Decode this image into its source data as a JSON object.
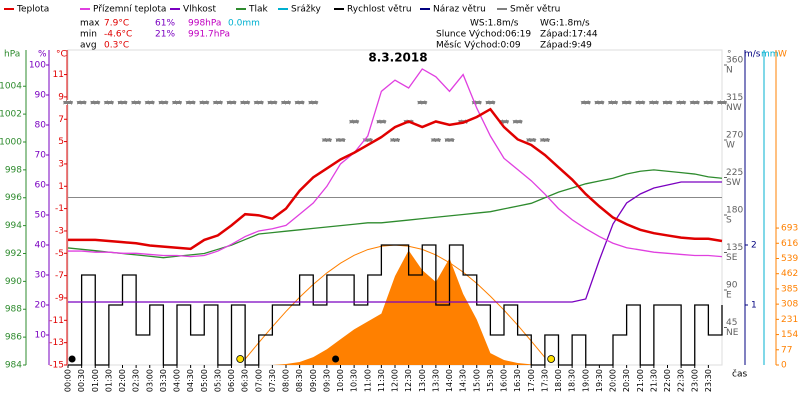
{
  "chart_data": {
    "type": "line",
    "title": "8.3.2018",
    "x_label": "čas",
    "xlim": [
      0,
      24
    ],
    "xticks": [
      {
        "value": 0,
        "label": "00:00"
      },
      {
        "value": 0.5,
        "label": "00:30"
      },
      {
        "value": 1,
        "label": "01:00"
      },
      {
        "value": 1.5,
        "label": "01:30"
      },
      {
        "value": 2,
        "label": "02:00"
      },
      {
        "value": 2.5,
        "label": "02:30"
      },
      {
        "value": 3,
        "label": "03:00"
      },
      {
        "value": 3.5,
        "label": "03:30"
      },
      {
        "value": 4,
        "label": "04:00"
      },
      {
        "value": 4.5,
        "label": "04:30"
      },
      {
        "value": 5,
        "label": "05:00"
      },
      {
        "value": 5.5,
        "label": "05:30"
      },
      {
        "value": 6,
        "label": "06:00"
      },
      {
        "value": 6.5,
        "label": "06:30"
      },
      {
        "value": 7,
        "label": "07:00"
      },
      {
        "value": 7.5,
        "label": "07:30"
      },
      {
        "value": 8,
        "label": "08:00"
      },
      {
        "value": 8.5,
        "label": "08:30"
      },
      {
        "value": 9,
        "label": "09:00"
      },
      {
        "value": 9.5,
        "label": "09:30"
      },
      {
        "value": 10,
        "label": "10:00"
      },
      {
        "value": 10.5,
        "label": "10:30"
      },
      {
        "value": 11,
        "label": "11:00"
      },
      {
        "value": 11.5,
        "label": "11:30"
      },
      {
        "value": 12,
        "label": "12:00"
      },
      {
        "value": 12.5,
        "label": "12:30"
      },
      {
        "value": 13,
        "label": "13:00"
      },
      {
        "value": 13.5,
        "label": "13:30"
      },
      {
        "value": 14,
        "label": "14:00"
      },
      {
        "value": 14.5,
        "label": "14:30"
      },
      {
        "value": 15,
        "label": "15:00"
      },
      {
        "value": 15.5,
        "label": "15:30"
      },
      {
        "value": 16,
        "label": "16:00"
      },
      {
        "value": 16.5,
        "label": "16:30"
      },
      {
        "value": 17,
        "label": "17:00"
      },
      {
        "value": 17.5,
        "label": "17:30"
      },
      {
        "value": 18,
        "label": "18:00"
      },
      {
        "value": 18.5,
        "label": "18:30"
      },
      {
        "value": 19,
        "label": "19:00"
      },
      {
        "value": 19.5,
        "label": "19:30"
      },
      {
        "value": 20,
        "label": "20:00"
      },
      {
        "value": 20.5,
        "label": "20:30"
      },
      {
        "value": 21,
        "label": "21:00"
      },
      {
        "value": 21.5,
        "label": "21:30"
      },
      {
        "value": 22,
        "label": "22:00"
      },
      {
        "value": 22.5,
        "label": "22:30"
      },
      {
        "value": 23,
        "label": "23:00"
      },
      {
        "value": 23.5,
        "label": "23:30"
      }
    ],
    "legend": [
      {
        "name": "Teplota",
        "color": "#e00000"
      },
      {
        "name": "Přízemní teplota",
        "color": "#e040e0"
      },
      {
        "name": "Vlhkost",
        "color": "#7a00c0"
      },
      {
        "name": "Tlak",
        "color": "#2e8b2e"
      },
      {
        "name": "Srážky",
        "color": "#00b0d0"
      },
      {
        "name": "Rychlost větru",
        "color": "#000000"
      },
      {
        "name": "Náraz větru",
        "color": "#000080"
      },
      {
        "name": "Směr větru",
        "color": "#808080"
      }
    ],
    "stats": [
      [
        "max",
        "7.9°C",
        "61%",
        "998hPa",
        "0.0mm"
      ],
      [
        "min",
        "-4.6°C",
        "21%",
        "991.7hPa"
      ],
      [
        "avg",
        "0.3°C"
      ]
    ],
    "info": [
      [
        "WS:1.8m/s",
        "WG:1.8m/s"
      ],
      [
        "Slunce Východ:06:19",
        "Západ:17:44"
      ],
      [
        "Měsíc Východ:0:09",
        "Západ:9:49"
      ]
    ],
    "axes": {
      "hpa": {
        "unit": "hPa",
        "color": "#2e8b2e",
        "lim": [
          984,
          1006.6
        ],
        "ticks": [
          1004,
          1002,
          1000,
          998,
          996,
          994,
          992,
          990,
          988,
          986,
          984
        ]
      },
      "pct": {
        "unit": "%",
        "color": "#7a00c0",
        "lim": [
          0,
          105
        ],
        "ticks": [
          100,
          90,
          80,
          70,
          60,
          50,
          40,
          30,
          20,
          10
        ]
      },
      "temp": {
        "unit": "°C",
        "color": "#e00000",
        "lim": [
          -15,
          13.2
        ],
        "ticks": [
          11,
          9,
          7,
          5,
          3,
          1,
          -1,
          -3,
          -5,
          -7,
          -9,
          -11,
          -13,
          -15
        ],
        "reference": 0
      },
      "dir": {
        "unit": "°",
        "color": "#606060",
        "lim": [
          0,
          378
        ],
        "ticks": [
          45,
          90,
          135,
          180,
          225,
          270,
          315,
          360
        ],
        "tick_names": [
          "NE",
          "E",
          "SE",
          "S",
          "SW",
          "W",
          "NW",
          "N"
        ]
      },
      "ms": {
        "unit": "m/s",
        "color": "#000080",
        "lim": [
          0,
          5.25
        ],
        "ticks": [
          1,
          2
        ]
      },
      "mm": {
        "unit": "mm",
        "color": "#00b0d0",
        "lim": [
          0,
          1
        ],
        "ticks": []
      },
      "w": {
        "unit": "W",
        "color": "#ff8000",
        "lim": [
          0,
          1594
        ],
        "ticks": [
          0,
          77,
          154,
          231,
          308,
          385,
          462,
          539,
          616,
          693
        ]
      }
    },
    "x": [
      0,
      0.5,
      1,
      1.5,
      2,
      2.5,
      3,
      3.5,
      4,
      4.5,
      5,
      5.5,
      6,
      6.5,
      7,
      7.5,
      8,
      8.5,
      9,
      9.5,
      10,
      10.5,
      11,
      11.5,
      12,
      12.5,
      13,
      13.5,
      14,
      14.5,
      15,
      15.5,
      16,
      16.5,
      17,
      17.5,
      18,
      18.5,
      19,
      19.5,
      20,
      20.5,
      21,
      21.5,
      22,
      22.5,
      23,
      23.5,
      24
    ],
    "series": [
      {
        "style": "area",
        "axis": "w",
        "color": "#ff8000",
        "values": [
          0,
          0,
          0,
          0,
          0,
          0,
          0,
          0,
          0,
          0,
          0,
          0,
          0,
          0,
          0,
          0,
          5,
          15,
          40,
          80,
          130,
          180,
          220,
          260,
          450,
          580,
          480,
          420,
          540,
          360,
          230,
          60,
          25,
          10,
          3,
          0,
          0,
          0,
          0,
          0,
          0,
          0,
          0,
          0,
          0,
          0,
          0,
          0,
          0
        ]
      },
      {
        "style": "thin",
        "axis": "w",
        "color": "#ff8000",
        "values": [
          null,
          null,
          null,
          null,
          null,
          null,
          null,
          null,
          null,
          null,
          null,
          null,
          null,
          30,
          113,
          194,
          271,
          343,
          408,
          466,
          515,
          555,
          584,
          601,
          607,
          601,
          585,
          557,
          518,
          470,
          413,
          348,
          278,
          202,
          121,
          38,
          null,
          null,
          null,
          null,
          null,
          null,
          null,
          null,
          null,
          null,
          null,
          null,
          null
        ]
      },
      {
        "style": "dots",
        "axis": "dir",
        "color": "#808080",
        "values": [
          315,
          315,
          315,
          315,
          315,
          315,
          315,
          315,
          315,
          315,
          315,
          315,
          315,
          315,
          315,
          315,
          315,
          315,
          315,
          270,
          270,
          292,
          270,
          292,
          270,
          292,
          315,
          270,
          270,
          292,
          315,
          315,
          292,
          292,
          270,
          270,
          null,
          null,
          315,
          315,
          315,
          315,
          315,
          315,
          315,
          315,
          315,
          315,
          315
        ]
      },
      {
        "style": "step",
        "axis": "ms",
        "color": "#000000",
        "values": [
          0,
          1.5,
          0,
          1,
          1.5,
          0.5,
          1,
          0,
          1,
          0.5,
          1,
          0,
          1,
          0,
          0.5,
          1,
          1,
          1.5,
          1,
          1.5,
          1.5,
          1,
          1.5,
          2,
          2,
          1.5,
          2,
          1,
          2,
          1.5,
          1,
          0.5,
          1,
          0.5,
          0,
          0.5,
          0,
          0.5,
          0,
          0,
          0.5,
          1,
          0,
          1,
          1,
          0,
          1,
          0.5,
          1
        ]
      },
      {
        "style": "line",
        "axis": "pct",
        "color": "#7a00c0",
        "values": [
          21,
          21,
          21,
          21,
          21,
          21,
          21,
          21,
          21,
          21,
          21,
          21,
          21,
          21,
          21,
          21,
          21,
          21,
          21,
          21,
          21,
          21,
          21,
          21,
          21,
          21,
          21,
          21,
          21,
          21,
          21,
          21,
          21,
          21,
          21,
          21,
          21,
          21,
          22,
          35,
          47,
          54,
          57,
          59,
          60,
          61,
          61,
          61,
          61
        ]
      },
      {
        "style": "line",
        "axis": "hpa",
        "color": "#2e8b2e",
        "values": [
          992.4,
          992.3,
          992.2,
          992.1,
          992.0,
          991.9,
          991.8,
          991.7,
          991.8,
          991.9,
          992.0,
          992.3,
          992.6,
          993.0,
          993.4,
          993.5,
          993.6,
          993.7,
          993.8,
          993.9,
          994.0,
          994.1,
          994.2,
          994.2,
          994.3,
          994.4,
          994.5,
          994.6,
          994.7,
          994.8,
          994.9,
          995.0,
          995.2,
          995.4,
          995.6,
          996.0,
          996.4,
          996.7,
          997.0,
          997.2,
          997.4,
          997.7,
          997.9,
          998.0,
          997.9,
          997.8,
          997.7,
          997.5,
          997.4
        ]
      },
      {
        "style": "line",
        "axis": "temp",
        "color": "#e040e0",
        "values": [
          -4.8,
          -4.8,
          -4.9,
          -4.9,
          -5.0,
          -5.0,
          -5.1,
          -5.2,
          -5.2,
          -5.3,
          -5.2,
          -4.8,
          -4.2,
          -3.5,
          -3.0,
          -2.8,
          -2.5,
          -1.5,
          -0.5,
          1.0,
          3.0,
          4.0,
          5.5,
          9.5,
          10.5,
          9.8,
          11.5,
          10.8,
          9.5,
          11.0,
          8.0,
          5.5,
          3.5,
          2.5,
          1.5,
          0.3,
          -1.0,
          -2.0,
          -2.8,
          -3.5,
          -4.1,
          -4.5,
          -4.7,
          -4.9,
          -5.0,
          -5.1,
          -5.2,
          -5.2,
          -5.3
        ]
      },
      {
        "style": "thick",
        "axis": "temp",
        "color": "#e00000",
        "values": [
          -3.8,
          -3.8,
          -3.8,
          -3.9,
          -4.0,
          -4.1,
          -4.3,
          -4.4,
          -4.5,
          -4.6,
          -3.8,
          -3.4,
          -2.5,
          -1.5,
          -1.6,
          -1.9,
          -1.0,
          0.6,
          1.8,
          2.6,
          3.4,
          4.0,
          4.7,
          5.4,
          6.3,
          6.8,
          6.3,
          6.8,
          6.5,
          6.7,
          7.2,
          7.9,
          6.3,
          5.2,
          4.7,
          3.8,
          2.7,
          1.6,
          0.3,
          -0.8,
          -1.8,
          -2.4,
          -2.9,
          -3.2,
          -3.4,
          -3.6,
          -3.7,
          -3.7,
          -3.9
        ]
      }
    ],
    "markers": {
      "moon": [
        0.15,
        9.82
      ],
      "sun": [
        6.32,
        17.73
      ]
    }
  }
}
